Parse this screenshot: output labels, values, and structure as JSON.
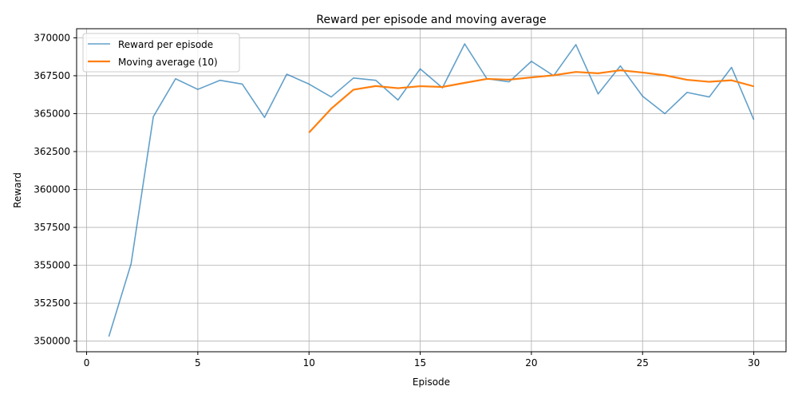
{
  "chart_data": {
    "type": "line",
    "title": "Reward per episode and moving average",
    "xlabel": "Episode",
    "ylabel": "Reward",
    "xlim": [
      -0.45,
      31.45
    ],
    "ylim": [
      349300,
      370600
    ],
    "xticks": [
      0,
      5,
      10,
      15,
      20,
      25,
      30
    ],
    "xtick_labels": [
      "0",
      "5",
      "10",
      "15",
      "20",
      "25",
      "30"
    ],
    "yticks": [
      350000,
      352500,
      355000,
      357500,
      360000,
      362500,
      365000,
      367500,
      370000
    ],
    "ytick_labels": [
      "350000",
      "352500",
      "355000",
      "357500",
      "360000",
      "362500",
      "365000",
      "367500",
      "370000"
    ],
    "grid": true,
    "legend": {
      "position": "top-left"
    },
    "series": [
      {
        "name": "Reward per episode",
        "color": "#1f77b4",
        "opacity": 0.7,
        "x": [
          1,
          2,
          3,
          4,
          5,
          6,
          7,
          8,
          9,
          10,
          11,
          12,
          13,
          14,
          15,
          16,
          17,
          18,
          19,
          20,
          21,
          22,
          23,
          24,
          25,
          26,
          27,
          28,
          29,
          30
        ],
        "values": [
          350300,
          355100,
          364800,
          367300,
          366600,
          367200,
          366950,
          364750,
          367600,
          366950,
          366100,
          367350,
          367200,
          365900,
          367950,
          366700,
          369600,
          367300,
          367100,
          368450,
          367500,
          369550,
          366300,
          368150,
          366150,
          365000,
          366400,
          366100,
          368050,
          364600
        ]
      },
      {
        "name": "Moving average (10)",
        "color": "#ff7f0e",
        "opacity": 1,
        "x": [
          10,
          11,
          12,
          13,
          14,
          15,
          16,
          17,
          18,
          19,
          20,
          21,
          22,
          23,
          24,
          25,
          26,
          27,
          28,
          29,
          30
        ],
        "values": [
          363750,
          365330,
          366580,
          366820,
          366680,
          366810,
          366760,
          367030,
          367290,
          367240,
          367390,
          367530,
          367750,
          367660,
          367860,
          367710,
          367530,
          367230,
          367100,
          367200,
          366800
        ]
      }
    ]
  }
}
